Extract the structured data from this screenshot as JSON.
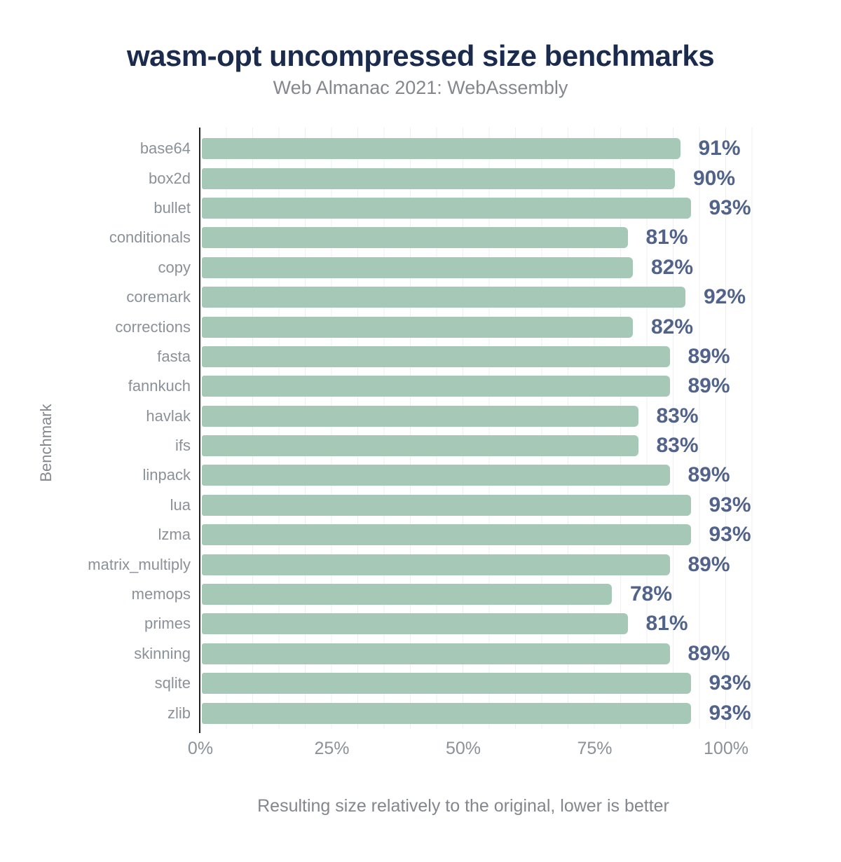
{
  "header": {
    "title": "wasm-opt uncompressed size benchmarks",
    "subtitle": "Web Almanac 2021: WebAssembly"
  },
  "chart_data": {
    "type": "bar",
    "orientation": "horizontal",
    "title": "wasm-opt uncompressed size benchmarks",
    "subtitle": "Web Almanac 2021: WebAssembly",
    "categories": [
      "base64",
      "box2d",
      "bullet",
      "conditionals",
      "copy",
      "coremark",
      "corrections",
      "fasta",
      "fannkuch",
      "havlak",
      "ifs",
      "linpack",
      "lua",
      "lzma",
      "matrix_multiply",
      "memops",
      "primes",
      "skinning",
      "sqlite",
      "zlib"
    ],
    "values": [
      91,
      90,
      93,
      81,
      82,
      92,
      82,
      89,
      89,
      83,
      83,
      89,
      93,
      93,
      89,
      78,
      81,
      89,
      93,
      93
    ],
    "value_suffix": "%",
    "xlabel": "Resulting size relatively to the original, lower is better",
    "ylabel": "Benchmark",
    "xlim": [
      0,
      100
    ],
    "x_ticks": [
      "0%",
      "25%",
      "50%",
      "75%",
      "100%"
    ],
    "x_tick_values": [
      0,
      25,
      50,
      75,
      100
    ],
    "grid": "minor vertical gridlines every 5%",
    "legend": "none",
    "colors": {
      "bar": "#a6c8b6",
      "value_label": "#51638a",
      "title": "#1a2b4d",
      "subtitle": "#84888e",
      "category_label": "#8b9199",
      "tick_label": "#8b9199",
      "axis_line": "#1f1f1f",
      "gridline": "#edeff2",
      "background": "#ffffff"
    }
  }
}
